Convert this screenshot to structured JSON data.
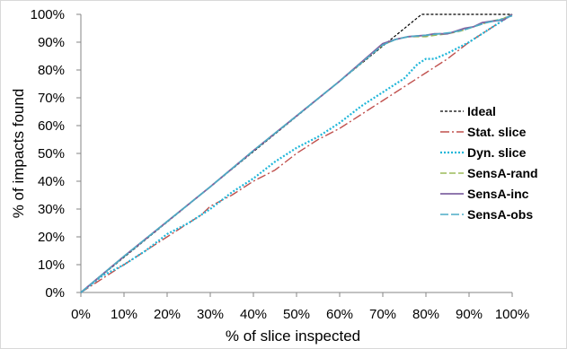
{
  "chart_data": {
    "type": "line",
    "title": "",
    "xlabel": "% of slice inspected",
    "ylabel": "% of impacts found",
    "xlim": [
      0,
      100
    ],
    "ylim": [
      0,
      100
    ],
    "x_ticks": [
      "0%",
      "10%",
      "20%",
      "30%",
      "40%",
      "50%",
      "60%",
      "70%",
      "80%",
      "90%",
      "100%"
    ],
    "y_ticks": [
      "0%",
      "10%",
      "20%",
      "30%",
      "40%",
      "50%",
      "60%",
      "70%",
      "80%",
      "90%",
      "100%"
    ],
    "grid": false,
    "legend_position": "right",
    "series": [
      {
        "name": "Ideal",
        "color": "#000000",
        "dash": "3,2",
        "width": 1.2,
        "points": [
          [
            0,
            0
          ],
          [
            79,
            100
          ],
          [
            100,
            100
          ]
        ]
      },
      {
        "name": "Stat. slice",
        "color": "#c0504d",
        "dash": "10,3,2,3",
        "width": 1.4,
        "points": [
          [
            0,
            0
          ],
          [
            5,
            5
          ],
          [
            10,
            10
          ],
          [
            15,
            15
          ],
          [
            20,
            20
          ],
          [
            25,
            25
          ],
          [
            28,
            28
          ],
          [
            30,
            31
          ],
          [
            35,
            35
          ],
          [
            40,
            40
          ],
          [
            45,
            44
          ],
          [
            50,
            50
          ],
          [
            55,
            55
          ],
          [
            60,
            59
          ],
          [
            65,
            64
          ],
          [
            70,
            69
          ],
          [
            75,
            74
          ],
          [
            80,
            79
          ],
          [
            85,
            84
          ],
          [
            90,
            90
          ],
          [
            95,
            95
          ],
          [
            100,
            100
          ]
        ]
      },
      {
        "name": "Dyn. slice",
        "color": "#1fb6d9",
        "dash": "2,2",
        "width": 2.2,
        "points": [
          [
            0,
            0
          ],
          [
            5,
            6
          ],
          [
            10,
            10
          ],
          [
            15,
            15
          ],
          [
            20,
            21
          ],
          [
            25,
            25
          ],
          [
            28,
            28
          ],
          [
            30,
            30
          ],
          [
            35,
            36
          ],
          [
            40,
            41
          ],
          [
            45,
            47
          ],
          [
            50,
            52
          ],
          [
            55,
            56
          ],
          [
            60,
            61
          ],
          [
            65,
            67
          ],
          [
            70,
            72
          ],
          [
            75,
            77
          ],
          [
            78,
            82
          ],
          [
            80,
            84
          ],
          [
            82,
            84
          ],
          [
            85,
            86
          ],
          [
            90,
            90
          ],
          [
            95,
            95
          ],
          [
            100,
            100
          ]
        ]
      },
      {
        "name": "SensA-rand",
        "color": "#9bbb59",
        "dash": "7,3",
        "width": 1.6,
        "points": [
          [
            0,
            0
          ],
          [
            10,
            13
          ],
          [
            20,
            25.5
          ],
          [
            30,
            38
          ],
          [
            40,
            51
          ],
          [
            50,
            63.5
          ],
          [
            60,
            76
          ],
          [
            70,
            89
          ],
          [
            73,
            91
          ],
          [
            76,
            92
          ],
          [
            80,
            92
          ],
          [
            82,
            92.5
          ],
          [
            85,
            93
          ],
          [
            88,
            94
          ],
          [
            90,
            95
          ],
          [
            92,
            96
          ],
          [
            95,
            97.5
          ],
          [
            98,
            98.5
          ],
          [
            100,
            100
          ]
        ]
      },
      {
        "name": "SensA-inc",
        "color": "#8064a2",
        "dash": "",
        "width": 1.8,
        "points": [
          [
            0,
            0
          ],
          [
            10,
            13
          ],
          [
            20,
            25.5
          ],
          [
            30,
            38
          ],
          [
            40,
            51
          ],
          [
            50,
            63.5
          ],
          [
            60,
            76
          ],
          [
            70,
            89.5
          ],
          [
            73,
            91
          ],
          [
            76,
            92
          ],
          [
            80,
            92.5
          ],
          [
            82,
            93
          ],
          [
            85,
            93
          ],
          [
            87,
            94
          ],
          [
            89,
            95
          ],
          [
            91,
            95.5
          ],
          [
            93,
            97
          ],
          [
            95,
            97.5
          ],
          [
            98,
            98
          ],
          [
            100,
            100
          ]
        ]
      },
      {
        "name": "SensA-obs",
        "color": "#4bacc6",
        "dash": "9,3",
        "width": 1.6,
        "points": [
          [
            0,
            0
          ],
          [
            10,
            13
          ],
          [
            20,
            25.5
          ],
          [
            30,
            38
          ],
          [
            40,
            51
          ],
          [
            50,
            63.5
          ],
          [
            60,
            76
          ],
          [
            70,
            89
          ],
          [
            73,
            91
          ],
          [
            76,
            92
          ],
          [
            80,
            92.5
          ],
          [
            83,
            93
          ],
          [
            86,
            93.5
          ],
          [
            89,
            94.5
          ],
          [
            91,
            95.5
          ],
          [
            94,
            97
          ],
          [
            97,
            98
          ],
          [
            100,
            99.5
          ]
        ]
      }
    ]
  }
}
